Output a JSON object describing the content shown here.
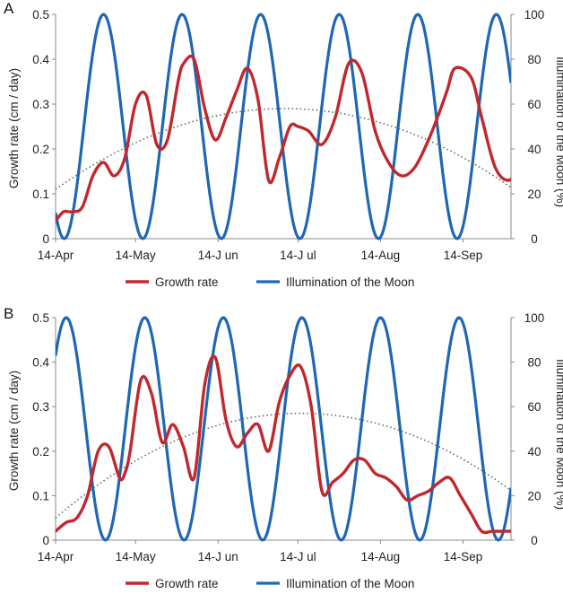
{
  "chart_data": [
    {
      "panel": "A",
      "type": "line",
      "categories": [
        "14-Apr",
        "14-May",
        "14-J un",
        "14-J ul",
        "14-Aug",
        "14-Sep"
      ],
      "xlabel": "",
      "ylabel": "Growth rate (cm / day)",
      "ylabel_right": "Illumination of the Moon (%)",
      "ylim": [
        0,
        0.5
      ],
      "y_ticks": [
        "0",
        "0.1",
        "0.2",
        "0.3",
        "0.4",
        "0.5"
      ],
      "ylim_right": [
        0,
        100
      ],
      "y_ticks_right": [
        "0",
        "20",
        "40",
        "60",
        "80",
        "100"
      ],
      "legend_position": "bottom",
      "series": [
        {
          "name": "Growth rate",
          "color": "#c0282d",
          "axis": "left",
          "x": [
            0,
            3,
            6,
            10,
            14,
            18,
            22,
            26,
            30,
            34,
            38,
            42,
            46,
            48,
            52,
            56,
            60,
            64,
            68,
            72,
            76,
            80,
            84,
            88,
            91,
            95,
            100,
            105,
            110,
            115,
            120,
            125,
            130,
            135,
            140,
            144,
            147,
            150,
            156,
            160,
            165,
            170,
            175
          ],
          "values": [
            0.04,
            0.06,
            0.06,
            0.07,
            0.14,
            0.17,
            0.14,
            0.18,
            0.3,
            0.32,
            0.21,
            0.22,
            0.35,
            0.39,
            0.4,
            0.29,
            0.22,
            0.27,
            0.33,
            0.38,
            0.31,
            0.13,
            0.18,
            0.25,
            0.25,
            0.24,
            0.21,
            0.27,
            0.39,
            0.37,
            0.24,
            0.17,
            0.14,
            0.16,
            0.22,
            0.28,
            0.33,
            0.38,
            0.36,
            0.27,
            0.16,
            0.13,
            0.16
          ]
        },
        {
          "name": "Illumination of the Moon",
          "color": "#1f67b4",
          "axis": "right",
          "function": "full moon period 29.5 days, first full moon at day 18"
        },
        {
          "name": "Trend (dotted)",
          "color": "#666666",
          "axis": "left",
          "function": "parabola peaking at 0.29 near day 86"
        }
      ]
    },
    {
      "panel": "B",
      "type": "line",
      "categories": [
        "14-Apr",
        "14-May",
        "14-J un",
        "14-J ul",
        "14-Aug",
        "14-Sep"
      ],
      "xlabel": "",
      "ylabel": "Growth rate (cm / day)",
      "ylabel_right": "Illumination of the Moon (%)",
      "ylim": [
        0,
        0.5
      ],
      "y_ticks": [
        "0",
        "0.1",
        "0.2",
        "0.3",
        "0.4",
        "0.5"
      ],
      "ylim_right": [
        0,
        100
      ],
      "y_ticks_right": [
        "0",
        "20",
        "40",
        "60",
        "80",
        "100"
      ],
      "legend_position": "bottom",
      "series": [
        {
          "name": "Growth rate",
          "color": "#c0282d",
          "axis": "left",
          "x": [
            0,
            4,
            8,
            12,
            16,
            20,
            24,
            26,
            28,
            32,
            36,
            40,
            44,
            48,
            52,
            56,
            60,
            64,
            68,
            72,
            76,
            80,
            84,
            88,
            92,
            96,
            100,
            104,
            108,
            112,
            116,
            120,
            124,
            128,
            132,
            136,
            140,
            144,
            148,
            152,
            156,
            160,
            164,
            168,
            172,
            176
          ],
          "values": [
            0.02,
            0.04,
            0.05,
            0.1,
            0.2,
            0.21,
            0.14,
            0.15,
            0.2,
            0.36,
            0.33,
            0.22,
            0.26,
            0.21,
            0.14,
            0.35,
            0.41,
            0.27,
            0.21,
            0.24,
            0.26,
            0.2,
            0.31,
            0.37,
            0.39,
            0.3,
            0.11,
            0.13,
            0.15,
            0.18,
            0.18,
            0.15,
            0.14,
            0.12,
            0.09,
            0.1,
            0.11,
            0.13,
            0.14,
            0.1,
            0.06,
            0.02,
            0.02,
            0.02,
            0.02,
            0.02
          ]
        },
        {
          "name": "Illumination of the Moon",
          "color": "#1f67b4",
          "axis": "right",
          "function": "full moon period 29.5 days, first full moon at day 4"
        },
        {
          "name": "Trend (dotted)",
          "color": "#666666",
          "axis": "left",
          "function": "parabola peaking at 0.285 near day 92"
        }
      ]
    }
  ],
  "panels": [
    {
      "label": "A",
      "legend": {
        "growth": "Growth rate",
        "moon": "Illumination of the Moon"
      }
    },
    {
      "label": "B",
      "legend": {
        "growth": "Growth rate",
        "moon": "Illumination of the Moon"
      }
    }
  ]
}
